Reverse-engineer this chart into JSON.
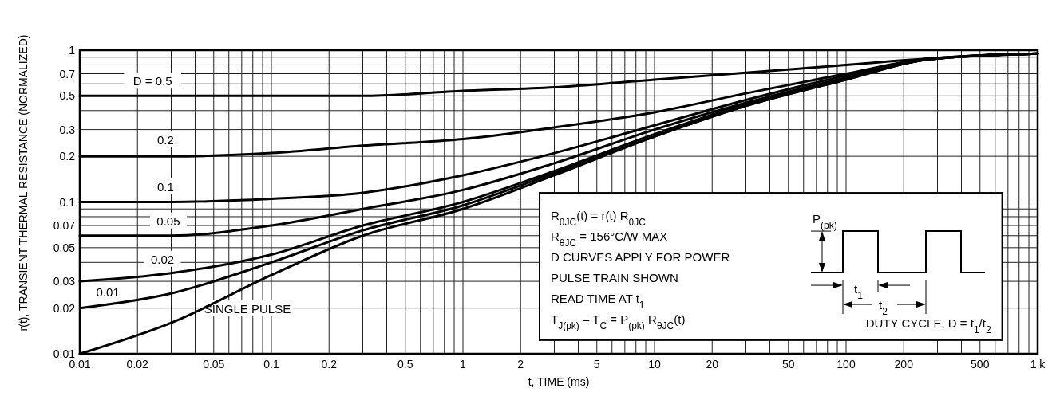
{
  "chart_data": {
    "type": "line",
    "xlabel": "t, TIME (ms)",
    "ylabel": "r(t), TRANSIENT THERMAL RESISTANCE (NORMALIZED)",
    "log": "xy",
    "grid": true,
    "legend": false,
    "line_style": "solid",
    "xlim": [
      0.01,
      1000
    ],
    "ylim": [
      0.01,
      1
    ],
    "xticks": [
      0.01,
      0.02,
      {
        "value": 0.03,
        "label": null
      },
      {
        "value": 0.04,
        "label": null
      },
      0.05,
      {
        "value": 0.06,
        "label": null
      },
      {
        "value": 0.07,
        "label": null
      },
      {
        "value": 0.08,
        "label": null
      },
      {
        "value": 0.09,
        "label": null
      },
      0.1,
      0.2,
      {
        "value": 0.3,
        "label": null
      },
      {
        "value": 0.4,
        "label": null
      },
      0.5,
      {
        "value": 0.6,
        "label": null
      },
      {
        "value": 0.7,
        "label": null
      },
      {
        "value": 0.8,
        "label": null
      },
      {
        "value": 0.9,
        "label": null
      },
      1,
      2,
      {
        "value": 3,
        "label": null
      },
      {
        "value": 4,
        "label": null
      },
      5,
      {
        "value": 6,
        "label": null
      },
      {
        "value": 7,
        "label": null
      },
      {
        "value": 8,
        "label": null
      },
      {
        "value": 9,
        "label": null
      },
      10,
      20,
      {
        "value": 30,
        "label": null
      },
      {
        "value": 40,
        "label": null
      },
      50,
      {
        "value": 60,
        "label": null
      },
      {
        "value": 70,
        "label": null
      },
      {
        "value": 80,
        "label": null
      },
      {
        "value": 90,
        "label": null
      },
      100,
      200,
      {
        "value": 300,
        "label": null
      },
      {
        "value": 400,
        "label": null
      },
      500,
      {
        "value": 600,
        "label": null
      },
      {
        "value": 700,
        "label": null
      },
      {
        "value": 800,
        "label": null
      },
      {
        "value": 900,
        "label": null
      },
      {
        "value": 1000,
        "label": "1 k"
      }
    ],
    "yticks": [
      0.01,
      0.02,
      0.03,
      {
        "value": 0.04,
        "label": null
      },
      0.05,
      {
        "value": 0.06,
        "label": null
      },
      0.07,
      {
        "value": 0.08,
        "label": null
      },
      {
        "value": 0.09,
        "label": null
      },
      0.1,
      0.2,
      0.3,
      {
        "value": 0.4,
        "label": null
      },
      0.5,
      {
        "value": 0.6,
        "label": null
      },
      0.7,
      {
        "value": 0.8,
        "label": null
      },
      {
        "value": 0.9,
        "label": null
      },
      1
    ],
    "x": [
      0.01,
      0.03,
      0.1,
      0.3,
      1,
      3,
      10,
      30,
      100,
      270,
      1000
    ],
    "series": [
      {
        "name": "D = 0.5",
        "color": "#000000",
        "values": [
          0.5,
          0.5,
          0.5,
          0.5,
          0.54,
          0.57,
          0.64,
          0.71,
          0.8,
          0.88,
          0.95
        ]
      },
      {
        "name": "0.2",
        "color": "#000000",
        "values": [
          0.2,
          0.2,
          0.21,
          0.235,
          0.26,
          0.31,
          0.39,
          0.52,
          0.7,
          0.88,
          0.95
        ]
      },
      {
        "name": "0.1",
        "color": "#000000",
        "values": [
          0.1,
          0.1,
          0.105,
          0.115,
          0.15,
          0.21,
          0.32,
          0.47,
          0.68,
          0.88,
          0.95
        ]
      },
      {
        "name": "0.05",
        "color": "#000000",
        "values": [
          0.06,
          0.06,
          0.07,
          0.09,
          0.12,
          0.18,
          0.3,
          0.45,
          0.66,
          0.87,
          0.95
        ]
      },
      {
        "name": "0.02",
        "color": "#000000",
        "values": [
          0.03,
          0.034,
          0.045,
          0.07,
          0.1,
          0.16,
          0.28,
          0.44,
          0.65,
          0.87,
          0.95
        ]
      },
      {
        "name": "0.01",
        "color": "#000000",
        "values": [
          0.02,
          0.025,
          0.04,
          0.065,
          0.095,
          0.155,
          0.27,
          0.43,
          0.64,
          0.87,
          0.95
        ]
      },
      {
        "name": "SINGLE PULSE",
        "color": "#000000",
        "values": [
          0.01,
          0.016,
          0.033,
          0.06,
          0.09,
          0.15,
          0.27,
          0.43,
          0.64,
          0.87,
          0.95
        ]
      }
    ],
    "annotations": [
      "R$_{θJC}$(t) = r(t) R$_{θJC}$",
      "R$_{θJC}$ = 156°C/W MAX",
      "D CURVES APPLY FOR POWER",
      "PULSE TRAIN SHOWN",
      "READ TIME AT t$_{1}$",
      "T$_{J(pk)}$ – T$_{C}$ = P$_{(pk)}$ R$_{θJC}$(t)",
      "DUTY CYCLE, D = t$_{1}$/t$_{2}$",
      "P$_{(pk)}$",
      "t$_{1}$",
      "t$_{2}$"
    ]
  }
}
